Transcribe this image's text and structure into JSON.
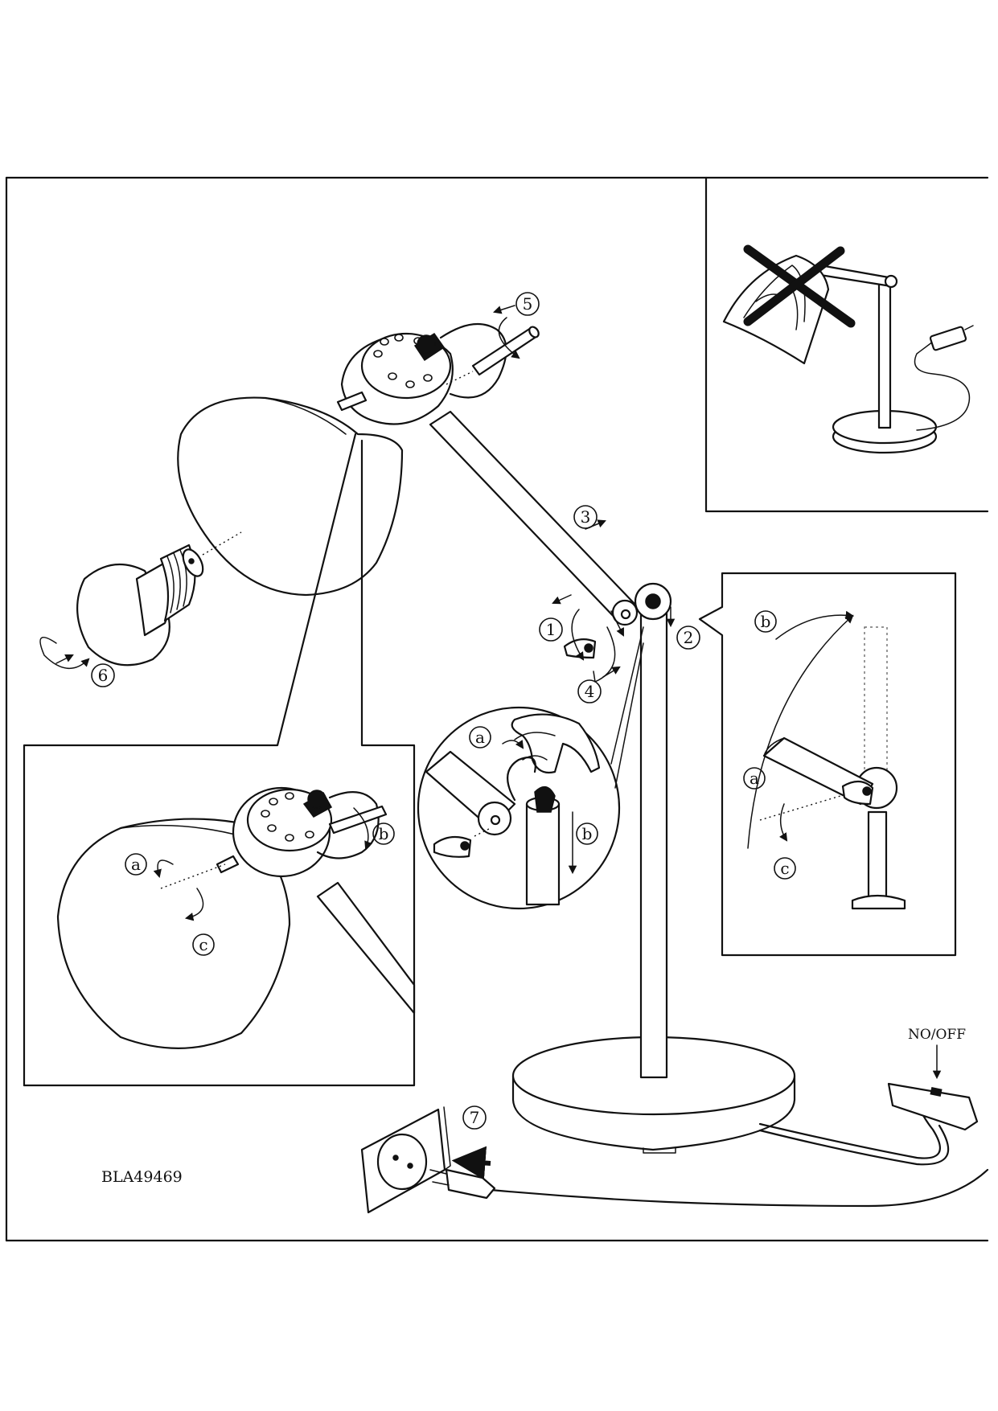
{
  "model_code": "BLA49469",
  "switch_label": "NO/OFF",
  "step_numbers": [
    "1",
    "2",
    "3",
    "4",
    "5",
    "6",
    "7"
  ],
  "detail_letters": [
    "a",
    "b",
    "c"
  ],
  "colors": {
    "line": "#111111",
    "background": "#ffffff"
  },
  "icons": [
    "do-not-cover-cross-icon"
  ]
}
